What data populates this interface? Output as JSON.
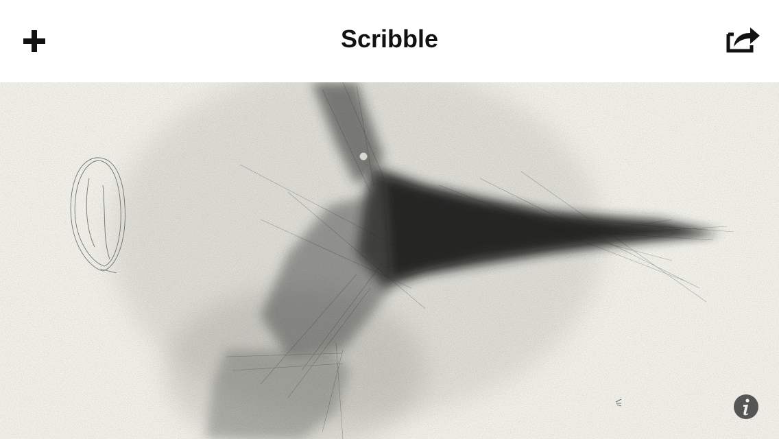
{
  "app": {
    "title": "Scribble"
  },
  "toolbar": {
    "add_icon": "plus-icon",
    "share_icon": "share-icon"
  },
  "canvas": {
    "background_color": "#f1f1ea",
    "stroke_color": "#1a1a1a"
  },
  "info": {
    "icon": "info-icon",
    "color": "#555555"
  }
}
